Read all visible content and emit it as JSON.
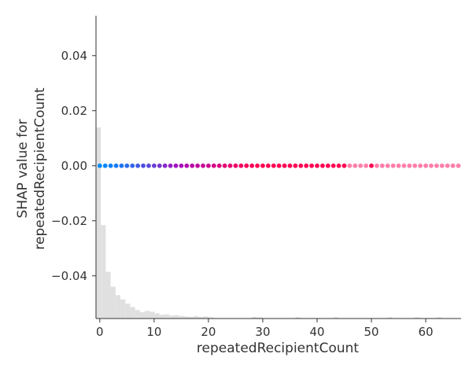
{
  "chart_data": {
    "type": "scatter",
    "title": "",
    "xlabel": "repeatedRecipientCount",
    "ylabel_lines": [
      "SHAP value for",
      "repeatedRecipientCount"
    ],
    "xlim": [
      -0.7,
      66.5
    ],
    "ylim": [
      -0.0555,
      0.0545
    ],
    "x_ticks": [
      0,
      10,
      20,
      30,
      40,
      50,
      60
    ],
    "x_tick_labels": [
      "0",
      "10",
      "20",
      "30",
      "40",
      "50",
      "60"
    ],
    "y_ticks": [
      0.04,
      0.02,
      0.0,
      -0.02,
      -0.04
    ],
    "y_tick_labels": [
      "0.04",
      "0.02",
      "0.00",
      "−0.02",
      "−0.04"
    ],
    "grid": false,
    "colormap": [
      "#008afb",
      "#a80fbf",
      "#ff0051"
    ],
    "colormap_high_alpha_color": "#ff0051",
    "points": {
      "x": [
        0,
        1,
        2,
        3,
        4,
        5,
        6,
        7,
        8,
        9,
        10,
        11,
        12,
        13,
        14,
        15,
        16,
        17,
        18,
        19,
        20,
        21,
        22,
        23,
        24,
        25,
        26,
        27,
        28,
        29,
        30,
        31,
        32,
        33,
        34,
        35,
        36,
        37,
        38,
        39,
        40,
        41,
        42,
        43,
        44,
        45,
        46,
        47,
        48,
        49,
        50,
        51,
        52,
        53,
        54,
        55,
        56,
        57,
        58,
        59,
        60,
        61,
        62,
        63,
        64,
        65,
        66
      ],
      "y": [
        0,
        0,
        0,
        0,
        0,
        0,
        0,
        0,
        0,
        0,
        0,
        0,
        0,
        0,
        0,
        0,
        0,
        0,
        0,
        0,
        0,
        0,
        0,
        0,
        0,
        0,
        0,
        0,
        0,
        0,
        0,
        0,
        0,
        0,
        0,
        0,
        0,
        0,
        0,
        0,
        0,
        0,
        0,
        0,
        0,
        0,
        0,
        0,
        0,
        0,
        0,
        0,
        0,
        0,
        0,
        0,
        0,
        0,
        0,
        0,
        0,
        0,
        0,
        0,
        0,
        0,
        0
      ],
      "color_value": [
        0.0,
        0.02,
        0.04,
        0.06,
        0.09,
        0.12,
        0.15,
        0.19,
        0.23,
        0.27,
        0.31,
        0.35,
        0.4,
        0.44,
        0.48,
        0.52,
        0.56,
        0.6,
        0.64,
        0.68,
        0.72,
        0.76,
        0.8,
        0.84,
        0.87,
        0.9,
        0.93,
        0.96,
        0.98,
        1,
        1,
        1,
        1,
        1,
        1,
        1,
        1,
        1,
        1,
        1,
        1,
        1,
        1,
        1,
        1,
        1,
        1,
        1,
        1,
        1,
        1,
        1,
        1,
        1,
        1,
        1,
        1,
        1,
        1,
        1,
        1,
        1,
        1,
        1,
        1,
        1,
        1
      ],
      "alpha": [
        1,
        1,
        1,
        1,
        1,
        1,
        1,
        1,
        1,
        1,
        1,
        1,
        1,
        1,
        1,
        1,
        1,
        1,
        1,
        1,
        1,
        1,
        1,
        1,
        1,
        1,
        1,
        1,
        1,
        1,
        1,
        1,
        1,
        1,
        1,
        1,
        1,
        1,
        1,
        1,
        1,
        1,
        1,
        1,
        1,
        1,
        0.5,
        0.5,
        0.5,
        0.5,
        1,
        0.5,
        0.5,
        0.5,
        0.5,
        0.5,
        0.5,
        0.5,
        0.5,
        0.5,
        0.5,
        0.5,
        0.5,
        0.5,
        0.5,
        0.5,
        0.5
      ]
    },
    "histogram": {
      "color": "#e0e0e0",
      "bins": [
        {
          "x0": -0.7,
          "x1": 0.2,
          "frac": 0.45
        },
        {
          "x0": 0.2,
          "x1": 1.1,
          "frac": 0.22
        },
        {
          "x0": 1.1,
          "x1": 2.0,
          "frac": 0.11
        },
        {
          "x0": 2.0,
          "x1": 2.9,
          "frac": 0.075
        },
        {
          "x0": 2.9,
          "x1": 3.8,
          "frac": 0.055
        },
        {
          "x0": 3.8,
          "x1": 4.7,
          "frac": 0.045
        },
        {
          "x0": 4.7,
          "x1": 5.6,
          "frac": 0.035
        },
        {
          "x0": 5.6,
          "x1": 6.5,
          "frac": 0.027
        },
        {
          "x0": 6.5,
          "x1": 7.4,
          "frac": 0.02
        },
        {
          "x0": 7.4,
          "x1": 8.3,
          "frac": 0.015
        },
        {
          "x0": 8.3,
          "x1": 9.2,
          "frac": 0.018
        },
        {
          "x0": 9.2,
          "x1": 10.1,
          "frac": 0.016
        },
        {
          "x0": 10.1,
          "x1": 11.0,
          "frac": 0.012
        },
        {
          "x0": 11.0,
          "x1": 11.9,
          "frac": 0.009
        },
        {
          "x0": 11.9,
          "x1": 12.8,
          "frac": 0.01
        },
        {
          "x0": 12.8,
          "x1": 13.7,
          "frac": 0.007
        },
        {
          "x0": 13.7,
          "x1": 14.6,
          "frac": 0.008
        },
        {
          "x0": 14.6,
          "x1": 15.5,
          "frac": 0.006
        },
        {
          "x0": 15.5,
          "x1": 16.4,
          "frac": 0.005
        },
        {
          "x0": 16.4,
          "x1": 17.3,
          "frac": 0.004
        },
        {
          "x0": 17.3,
          "x1": 18.2,
          "frac": 0.006
        },
        {
          "x0": 18.2,
          "x1": 19.1,
          "frac": 0.004
        },
        {
          "x0": 19.1,
          "x1": 20.0,
          "frac": 0.005
        },
        {
          "x0": 20.0,
          "x1": 20.9,
          "frac": 0.003
        },
        {
          "x0": 28.0,
          "x1": 28.9,
          "frac": 0.004
        },
        {
          "x0": 29.0,
          "x1": 29.9,
          "frac": 0.003
        },
        {
          "x0": 36.0,
          "x1": 36.9,
          "frac": 0.003
        },
        {
          "x0": 43.0,
          "x1": 43.9,
          "frac": 0.003
        },
        {
          "x0": 53.0,
          "x1": 53.9,
          "frac": 0.003
        },
        {
          "x0": 58.0,
          "x1": 58.9,
          "frac": 0.003
        },
        {
          "x0": 62.0,
          "x1": 62.9,
          "frac": 0.003
        }
      ]
    }
  }
}
